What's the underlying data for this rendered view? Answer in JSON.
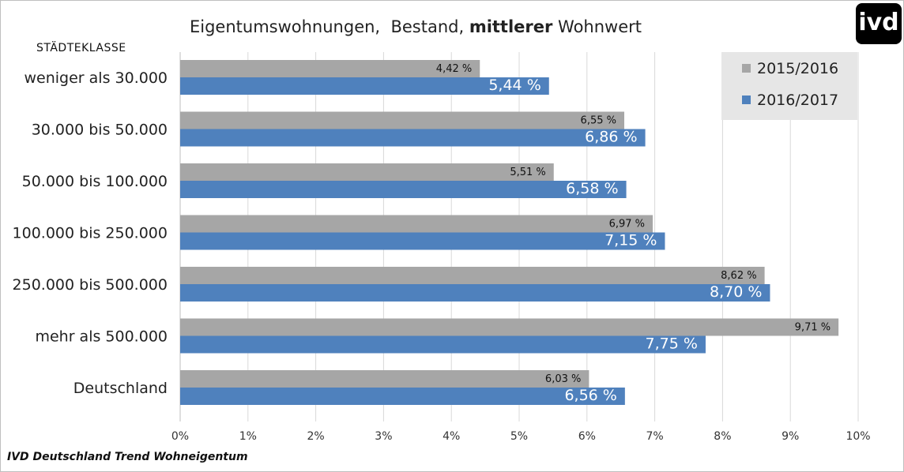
{
  "chart_data": {
    "type": "bar",
    "orientation": "horizontal",
    "title_parts": {
      "normal_1": "Eigentumswohnungen,  Bestand, ",
      "bold": "mittlerer",
      "normal_2": " Wohnwert"
    },
    "category_axis_title": "STÄDTEKLASSE",
    "categories": [
      "weniger als 30.000",
      "30.000 bis 50.000",
      "50.000 bis 100.000",
      "100.000 bis 250.000",
      "250.000 bis 500.000",
      "mehr als 500.000",
      "Deutschland"
    ],
    "series": [
      {
        "name": "2015/2016",
        "color": "#a6a6a6",
        "values": [
          4.42,
          6.55,
          5.51,
          6.97,
          8.62,
          9.71,
          6.03
        ],
        "labels": [
          "4,42 %",
          "6,55 %",
          "5,51 %",
          "6,97 %",
          "8,62 %",
          "9,71 %",
          "6,03 %"
        ]
      },
      {
        "name": "2016/2017",
        "color": "#4f81bd",
        "values": [
          5.44,
          6.86,
          6.58,
          7.15,
          8.7,
          7.75,
          6.56
        ],
        "labels": [
          "5,44 %",
          "6,86 %",
          "6,58 %",
          "7,15 %",
          "8,70 %",
          "7,75 %",
          "6,56 %"
        ]
      }
    ],
    "xlim": [
      0,
      10
    ],
    "x_ticks": [
      "0%",
      "1%",
      "2%",
      "3%",
      "4%",
      "5%",
      "6%",
      "7%",
      "8%",
      "9%",
      "10%"
    ],
    "grid": true,
    "legend_position": "top-right"
  },
  "footer": "IVD Deutschland Trend Wohneigentum",
  "logo_text": "ivd"
}
